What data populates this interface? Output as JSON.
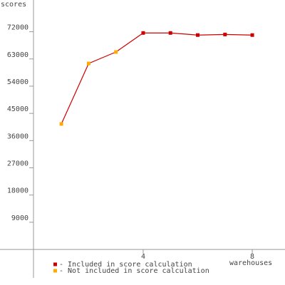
{
  "chart_data": {
    "type": "line",
    "y_label": "scores",
    "x_label": "warehouses",
    "x": [
      1,
      2,
      3,
      4,
      5,
      6,
      7,
      8
    ],
    "series": [
      {
        "name": "- Included in score calculation",
        "color": "#cc0000",
        "values": [
          null,
          null,
          null,
          71600,
          71600,
          70900,
          71100,
          70900
        ]
      },
      {
        "name": "- Not included in score calculation",
        "color": "#ffaa00",
        "values": [
          41500,
          61500,
          65300,
          null,
          null,
          null,
          null,
          null
        ]
      }
    ],
    "line_color": "#cc0000",
    "xlim": [
      -1.25,
      9.2
    ],
    "xticks": [
      4,
      8
    ],
    "ylim": [
      -9400,
      82500
    ],
    "yticks": [
      9000,
      18000,
      27000,
      36000,
      45000,
      54000,
      63000,
      72000
    ]
  }
}
